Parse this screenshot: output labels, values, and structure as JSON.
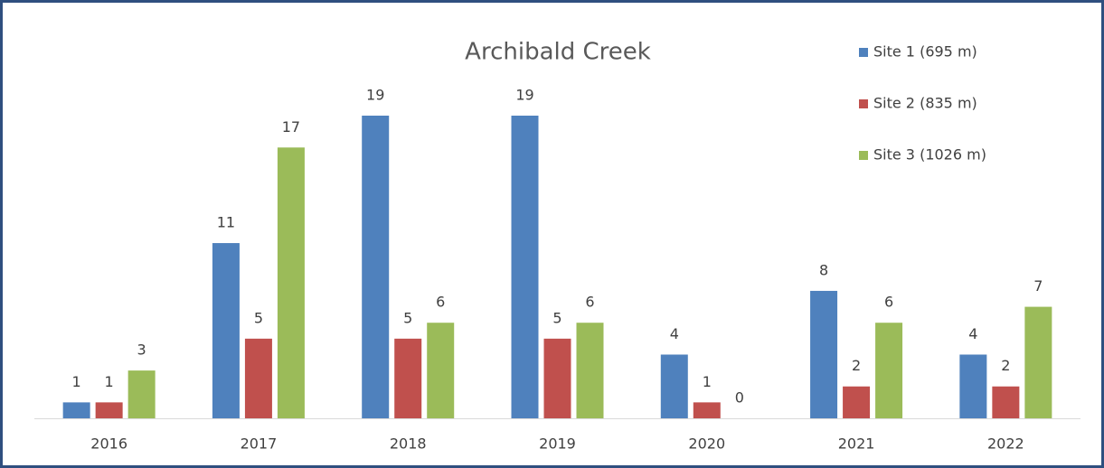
{
  "chart_data": {
    "type": "bar",
    "title": "Archibald Creek",
    "categories": [
      "2016",
      "2017",
      "2018",
      "2019",
      "2020",
      "2021",
      "2022"
    ],
    "series": [
      {
        "name": "Site 1 (695 m)",
        "color": "#4f81bd",
        "values": [
          1,
          11,
          19,
          19,
          4,
          8,
          4
        ]
      },
      {
        "name": "Site 2 (835 m)",
        "color": "#c0504d",
        "values": [
          1,
          5,
          5,
          5,
          1,
          2,
          2
        ]
      },
      {
        "name": "Site 3 (1026 m)",
        "color": "#9bbb59",
        "values": [
          3,
          17,
          6,
          6,
          0,
          6,
          7
        ]
      }
    ],
    "legend": "right"
  }
}
